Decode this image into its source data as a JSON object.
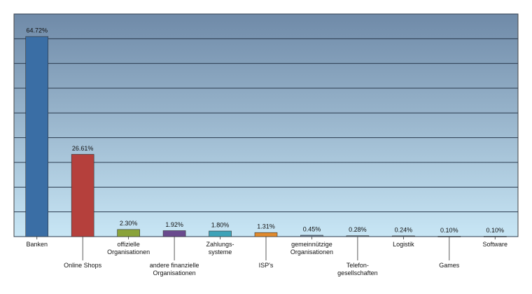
{
  "chart_data": {
    "type": "bar",
    "categories": [
      "Banken",
      "Online Shops",
      "offizielle\nOrganisationen",
      "andere finanzielle\nOrganisationen",
      "Zahlungs-\nsysteme",
      "ISP's",
      "gemeinnützige\nOrganisationen",
      "Telefon-\ngesellschaften",
      "Logistik",
      "Games",
      "Software"
    ],
    "values": [
      64.72,
      26.61,
      2.3,
      1.92,
      1.8,
      1.31,
      0.45,
      0.28,
      0.24,
      0.1,
      0.1
    ],
    "value_labels": [
      "64.72%",
      "26.61%",
      "2.30%",
      "1.92%",
      "1.80%",
      "1.31%",
      "0.45%",
      "0.28%",
      "0.24%",
      "0.10%",
      "0.10%"
    ],
    "colors": [
      "#3a6ea5",
      "#b5403c",
      "#8aa33a",
      "#6a4a8e",
      "#3fa3b8",
      "#e08a2e",
      "#6e86a0",
      "#6e86a0",
      "#6e86a0",
      "#6e86a0",
      "#6e86a0"
    ],
    "ylim": [
      0,
      72
    ],
    "yticks": [
      0,
      8,
      16,
      24,
      32,
      40,
      48,
      56,
      64,
      72
    ],
    "grid": true
  }
}
